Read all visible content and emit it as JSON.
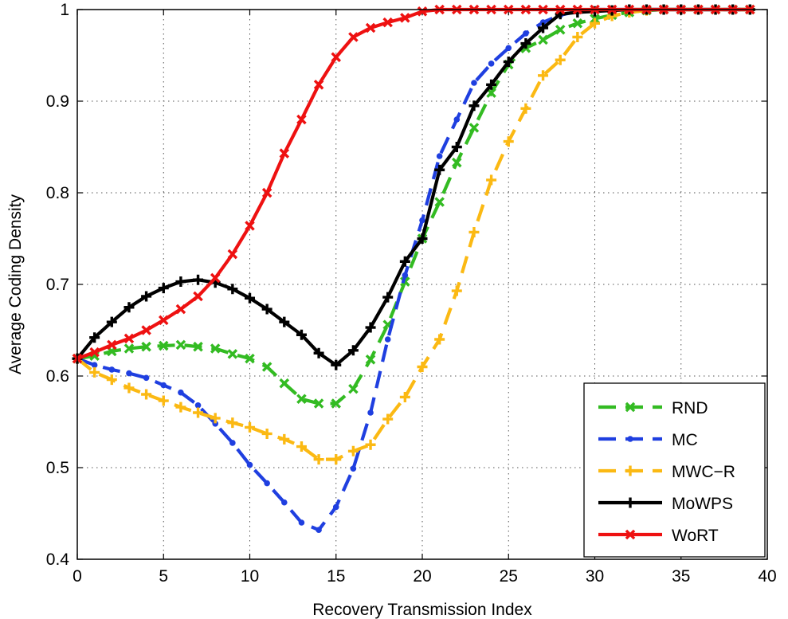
{
  "chart_data": {
    "type": "line",
    "xlabel": "Recovery Transmission Index",
    "ylabel": "Average Coding Density",
    "xlim": [
      0,
      40
    ],
    "ylim": [
      0.4,
      1
    ],
    "xticks": [
      0,
      5,
      10,
      15,
      20,
      25,
      30,
      35,
      40
    ],
    "yticks": [
      0.4,
      0.5,
      0.6,
      0.7,
      0.8,
      0.9,
      1
    ],
    "xtick_labels": [
      "0",
      "5",
      "10",
      "15",
      "20",
      "25",
      "30",
      "35",
      "40"
    ],
    "ytick_labels": [
      "0.4",
      "0.5",
      "0.6",
      "0.7",
      "0.8",
      "0.9",
      "1"
    ],
    "grid": true,
    "legend_position": "bottom-right",
    "series": [
      {
        "name": "RND",
        "color": "#33bb22",
        "dash": true,
        "marker": "x",
        "x": [
          0,
          1,
          2,
          3,
          4,
          5,
          6,
          7,
          8,
          9,
          10,
          11,
          12,
          13,
          14,
          15,
          16,
          17,
          18,
          19,
          20,
          21,
          22,
          23,
          24,
          25,
          26,
          27,
          28,
          29,
          30,
          31,
          32,
          33,
          34,
          35,
          36,
          37,
          38,
          39
        ],
        "y": [
          0.619,
          0.622,
          0.627,
          0.63,
          0.632,
          0.633,
          0.634,
          0.632,
          0.63,
          0.624,
          0.619,
          0.61,
          0.592,
          0.575,
          0.57,
          0.57,
          0.586,
          0.618,
          0.656,
          0.703,
          0.75,
          0.79,
          0.833,
          0.871,
          0.909,
          0.94,
          0.958,
          0.967,
          0.978,
          0.985,
          0.99,
          0.994,
          0.997,
          0.999,
          1,
          1,
          1,
          1,
          1,
          1
        ]
      },
      {
        "name": "MC",
        "color": "#1f3fe0",
        "dash": true,
        "marker": "dot",
        "x": [
          0,
          1,
          2,
          3,
          4,
          5,
          6,
          7,
          8,
          9,
          10,
          11,
          12,
          13,
          14,
          15,
          16,
          17,
          18,
          19,
          20,
          21,
          22,
          23,
          24,
          25,
          26,
          27,
          28,
          29,
          30,
          31,
          32,
          33,
          34,
          35,
          36,
          37,
          38,
          39
        ],
        "y": [
          0.619,
          0.612,
          0.607,
          0.603,
          0.598,
          0.59,
          0.582,
          0.568,
          0.548,
          0.527,
          0.503,
          0.483,
          0.462,
          0.44,
          0.432,
          0.457,
          0.499,
          0.56,
          0.64,
          0.71,
          0.77,
          0.84,
          0.88,
          0.92,
          0.941,
          0.958,
          0.974,
          0.986,
          0.994,
          0.998,
          1,
          1,
          1,
          1,
          1,
          1,
          1,
          1,
          1,
          1
        ]
      },
      {
        "name": "MWC−R",
        "color": "#fbb913",
        "dash": true,
        "marker": "plus",
        "x": [
          0,
          1,
          2,
          3,
          4,
          5,
          6,
          7,
          8,
          9,
          10,
          11,
          12,
          13,
          14,
          15,
          16,
          17,
          18,
          19,
          20,
          21,
          22,
          23,
          24,
          25,
          26,
          27,
          28,
          29,
          30,
          31,
          32,
          33,
          34,
          35,
          36,
          37,
          38,
          39
        ],
        "y": [
          0.619,
          0.604,
          0.596,
          0.587,
          0.58,
          0.573,
          0.566,
          0.56,
          0.554,
          0.549,
          0.544,
          0.537,
          0.531,
          0.523,
          0.509,
          0.509,
          0.518,
          0.525,
          0.553,
          0.577,
          0.61,
          0.64,
          0.693,
          0.757,
          0.814,
          0.856,
          0.892,
          0.928,
          0.945,
          0.97,
          0.985,
          0.993,
          0.997,
          0.999,
          1,
          1,
          1,
          1,
          1,
          1
        ]
      },
      {
        "name": "MoWPS",
        "color": "#000000",
        "dash": false,
        "marker": "plus",
        "x": [
          0,
          1,
          2,
          3,
          4,
          5,
          6,
          7,
          8,
          9,
          10,
          11,
          12,
          13,
          14,
          15,
          16,
          17,
          18,
          19,
          20,
          21,
          22,
          23,
          24,
          25,
          26,
          27,
          28,
          29,
          30,
          31,
          32,
          33,
          34,
          35,
          36,
          37,
          38,
          39
        ],
        "y": [
          0.619,
          0.642,
          0.659,
          0.675,
          0.687,
          0.696,
          0.703,
          0.705,
          0.702,
          0.695,
          0.685,
          0.673,
          0.659,
          0.645,
          0.625,
          0.612,
          0.628,
          0.653,
          0.686,
          0.725,
          0.75,
          0.825,
          0.85,
          0.895,
          0.918,
          0.943,
          0.963,
          0.98,
          0.995,
          0.997,
          0.998,
          0.999,
          1,
          1,
          1,
          1,
          1,
          1,
          1,
          1
        ]
      },
      {
        "name": "WoRT",
        "color": "#ee1111",
        "dash": false,
        "marker": "x",
        "x": [
          0,
          1,
          2,
          3,
          4,
          5,
          6,
          7,
          8,
          9,
          10,
          11,
          12,
          13,
          14,
          15,
          16,
          17,
          18,
          19,
          20,
          21,
          22,
          23,
          24,
          25,
          26,
          27,
          28,
          29,
          30,
          31,
          32,
          33,
          34,
          35,
          36,
          37,
          38,
          39
        ],
        "y": [
          0.619,
          0.626,
          0.634,
          0.641,
          0.65,
          0.661,
          0.673,
          0.687,
          0.707,
          0.733,
          0.764,
          0.8,
          0.843,
          0.88,
          0.918,
          0.948,
          0.97,
          0.98,
          0.986,
          0.991,
          0.998,
          1,
          1,
          1,
          1,
          1,
          1,
          1,
          1,
          1,
          1,
          1,
          1,
          1,
          1,
          1,
          1,
          1,
          1,
          1
        ]
      }
    ]
  }
}
